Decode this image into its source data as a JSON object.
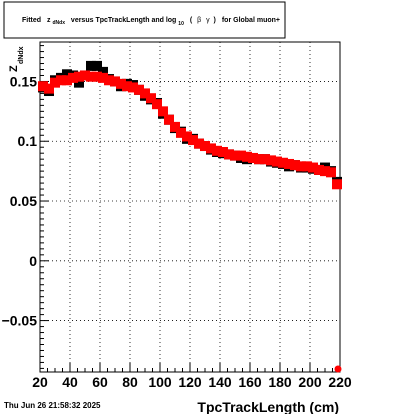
{
  "title": {
    "prefix": "Fitted",
    "z": "z",
    "z_sub": "dNdx",
    "mid": "versus TpcTrackLength and log",
    "log_sub": "10",
    "paren_open": "(",
    "beta": "β",
    "gamma": "γ",
    "paren_close": ")",
    "suffix": "for Global muon+"
  },
  "footer": "Thu Jun 26 21:58:32 2025",
  "chart_data": {
    "type": "scatter",
    "title": "Fitted z_dNdx versus TpcTrackLength and log_10 (β γ) for Global muon+",
    "xlabel": "TpcTrackLength (cm)",
    "ylabel": "Z",
    "ylabel_sub": "dNdx",
    "xlim": [
      20,
      220
    ],
    "ylim": [
      -0.093,
      0.183
    ],
    "xticks": [
      20,
      40,
      60,
      80,
      100,
      120,
      140,
      160,
      180,
      200,
      220
    ],
    "xtick_labels": [
      "20",
      "40",
      "60",
      "80",
      "100",
      "120",
      "140",
      "160",
      "180",
      "200",
      "220"
    ],
    "yticks": [
      0.15,
      0.1,
      0.05,
      0,
      -0.05
    ],
    "ytick_labels": [
      "0.15",
      "0.1",
      "0.05",
      "0",
      "−0.05"
    ],
    "grid": true,
    "series": [
      {
        "color": "#000000",
        "marker": "square",
        "x": [
          22,
          26,
          30,
          34,
          38,
          42,
          46,
          50,
          54,
          58,
          62,
          66,
          70,
          74,
          78,
          82,
          86,
          90,
          94,
          98,
          102,
          106,
          110,
          114,
          118,
          122,
          126,
          130,
          134,
          138,
          142,
          146,
          150,
          154,
          158,
          162,
          166,
          170,
          174,
          178,
          182,
          186,
          190,
          194,
          198,
          202,
          206,
          210,
          214,
          218
        ],
        "y": [
          0.145,
          0.142,
          0.151,
          0.153,
          0.156,
          0.155,
          0.149,
          0.155,
          0.163,
          0.163,
          0.158,
          0.152,
          0.15,
          0.146,
          0.148,
          0.147,
          0.143,
          0.138,
          0.135,
          0.132,
          0.123,
          0.118,
          0.111,
          0.108,
          0.102,
          0.102,
          0.098,
          0.096,
          0.093,
          0.091,
          0.09,
          0.089,
          0.088,
          0.086,
          0.085,
          0.086,
          0.085,
          0.085,
          0.083,
          0.082,
          0.081,
          0.079,
          0.08,
          0.078,
          0.078,
          0.077,
          0.076,
          0.078,
          0.075,
          0.066
        ]
      },
      {
        "color": "#ff0000",
        "marker": "square",
        "x": [
          22,
          26,
          30,
          34,
          38,
          42,
          46,
          50,
          54,
          58,
          62,
          66,
          70,
          74,
          78,
          82,
          86,
          90,
          94,
          98,
          102,
          106,
          110,
          114,
          118,
          122,
          126,
          130,
          134,
          138,
          142,
          146,
          150,
          154,
          158,
          162,
          166,
          170,
          174,
          178,
          182,
          186,
          190,
          194,
          198,
          202,
          206,
          210,
          214,
          218
        ],
        "y": [
          0.146,
          0.144,
          0.149,
          0.151,
          0.151,
          0.153,
          0.154,
          0.155,
          0.154,
          0.154,
          0.153,
          0.151,
          0.15,
          0.148,
          0.146,
          0.145,
          0.143,
          0.14,
          0.136,
          0.131,
          0.125,
          0.118,
          0.112,
          0.107,
          0.104,
          0.101,
          0.098,
          0.096,
          0.094,
          0.092,
          0.091,
          0.089,
          0.088,
          0.088,
          0.087,
          0.086,
          0.085,
          0.085,
          0.084,
          0.083,
          0.082,
          0.081,
          0.08,
          0.079,
          0.079,
          0.078,
          0.076,
          0.075,
          0.074,
          0.064
        ]
      }
    ]
  }
}
